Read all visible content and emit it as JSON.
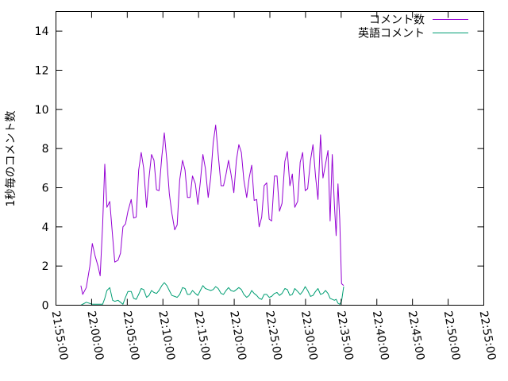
{
  "chart_data": {
    "type": "line",
    "ylabel": "1秒毎のコメント数",
    "xlabel": "",
    "ylim": [
      0,
      15
    ],
    "xlim": [
      "21:55:00",
      "22:55:00"
    ],
    "x_unit": "minutes after 21:55:00",
    "yticks": [
      0,
      2,
      4,
      6,
      8,
      10,
      12,
      14
    ],
    "xticks": [
      {
        "value": 0,
        "label": "21:55:00"
      },
      {
        "value": 5,
        "label": "22:00:00"
      },
      {
        "value": 10,
        "label": "22:05:00"
      },
      {
        "value": 15,
        "label": "22:10:00"
      },
      {
        "value": 20,
        "label": "22:15:00"
      },
      {
        "value": 25,
        "label": "22:20:00"
      },
      {
        "value": 30,
        "label": "22:25:00"
      },
      {
        "value": 35,
        "label": "22:30:00"
      },
      {
        "value": 40,
        "label": "22:35:00"
      },
      {
        "value": 45,
        "label": "22:40:00"
      },
      {
        "value": 50,
        "label": "22:45:00"
      },
      {
        "value": 55,
        "label": "22:50:00"
      },
      {
        "value": 60,
        "label": "22:55:00"
      }
    ],
    "legend_position": "top-right",
    "series": [
      {
        "name": "コメント数",
        "color": "#9400d3",
        "points": [
          [
            3.5,
            1.0
          ],
          [
            3.75,
            0.55
          ],
          [
            4.25,
            0.9
          ],
          [
            4.75,
            2.0
          ],
          [
            5.1,
            3.15
          ],
          [
            5.5,
            2.5
          ],
          [
            5.9,
            2.0
          ],
          [
            6.2,
            1.5
          ],
          [
            6.55,
            4.1
          ],
          [
            6.85,
            7.2
          ],
          [
            7.15,
            5.0
          ],
          [
            7.55,
            5.3
          ],
          [
            7.95,
            3.5
          ],
          [
            8.25,
            2.2
          ],
          [
            8.7,
            2.3
          ],
          [
            9.05,
            2.65
          ],
          [
            9.4,
            4.0
          ],
          [
            9.75,
            4.15
          ],
          [
            10.1,
            4.8
          ],
          [
            10.55,
            5.4
          ],
          [
            10.9,
            4.45
          ],
          [
            11.25,
            4.5
          ],
          [
            11.6,
            6.9
          ],
          [
            11.95,
            7.8
          ],
          [
            12.3,
            7.0
          ],
          [
            12.7,
            5.0
          ],
          [
            13.05,
            6.5
          ],
          [
            13.4,
            7.7
          ],
          [
            13.75,
            7.4
          ],
          [
            14.1,
            5.9
          ],
          [
            14.45,
            5.85
          ],
          [
            14.85,
            7.6
          ],
          [
            15.2,
            8.8
          ],
          [
            15.55,
            7.4
          ],
          [
            15.9,
            5.7
          ],
          [
            16.25,
            4.7
          ],
          [
            16.65,
            3.85
          ],
          [
            17.0,
            4.1
          ],
          [
            17.35,
            6.4
          ],
          [
            17.75,
            7.4
          ],
          [
            18.1,
            6.9
          ],
          [
            18.45,
            5.5
          ],
          [
            18.8,
            5.5
          ],
          [
            19.15,
            6.6
          ],
          [
            19.55,
            6.2
          ],
          [
            19.9,
            5.15
          ],
          [
            20.25,
            6.3
          ],
          [
            20.6,
            7.7
          ],
          [
            20.95,
            7.0
          ],
          [
            21.35,
            5.5
          ],
          [
            21.7,
            6.5
          ],
          [
            22.05,
            8.3
          ],
          [
            22.4,
            9.2
          ],
          [
            22.75,
            7.7
          ],
          [
            23.15,
            6.1
          ],
          [
            23.5,
            6.1
          ],
          [
            23.85,
            6.7
          ],
          [
            24.2,
            7.4
          ],
          [
            24.55,
            6.7
          ],
          [
            24.95,
            5.75
          ],
          [
            25.3,
            7.4
          ],
          [
            25.65,
            8.2
          ],
          [
            26.0,
            7.8
          ],
          [
            26.35,
            6.4
          ],
          [
            26.75,
            5.5
          ],
          [
            27.1,
            6.5
          ],
          [
            27.45,
            7.15
          ],
          [
            27.8,
            5.35
          ],
          [
            28.15,
            5.4
          ],
          [
            28.5,
            4.0
          ],
          [
            28.85,
            4.5
          ],
          [
            29.2,
            6.1
          ],
          [
            29.55,
            6.25
          ],
          [
            29.9,
            4.4
          ],
          [
            30.25,
            4.3
          ],
          [
            30.65,
            6.6
          ],
          [
            31.0,
            6.6
          ],
          [
            31.35,
            4.8
          ],
          [
            31.7,
            5.2
          ],
          [
            32.1,
            7.35
          ],
          [
            32.45,
            7.85
          ],
          [
            32.8,
            6.1
          ],
          [
            33.15,
            6.7
          ],
          [
            33.5,
            5.0
          ],
          [
            33.9,
            5.3
          ],
          [
            34.25,
            7.3
          ],
          [
            34.6,
            7.8
          ],
          [
            34.95,
            5.85
          ],
          [
            35.3,
            5.95
          ],
          [
            35.7,
            7.4
          ],
          [
            36.05,
            8.2
          ],
          [
            36.4,
            6.6
          ],
          [
            36.75,
            5.4
          ],
          [
            37.1,
            8.7
          ],
          [
            37.45,
            6.5
          ],
          [
            37.8,
            7.2
          ],
          [
            38.15,
            7.9
          ],
          [
            38.45,
            4.3
          ],
          [
            38.75,
            7.7
          ],
          [
            39.05,
            5.1
          ],
          [
            39.3,
            3.55
          ],
          [
            39.55,
            6.2
          ],
          [
            39.8,
            4.4
          ],
          [
            40.05,
            1.1
          ],
          [
            40.35,
            1.0
          ]
        ]
      },
      {
        "name": "英語コメント",
        "color": "#009e73",
        "points": [
          [
            3.5,
            0.0
          ],
          [
            4.25,
            0.15
          ],
          [
            5.1,
            0.05
          ],
          [
            5.9,
            0.05
          ],
          [
            6.55,
            0.05
          ],
          [
            6.85,
            0.35
          ],
          [
            7.15,
            0.75
          ],
          [
            7.55,
            0.9
          ],
          [
            7.95,
            0.25
          ],
          [
            8.25,
            0.2
          ],
          [
            8.7,
            0.25
          ],
          [
            9.05,
            0.15
          ],
          [
            9.4,
            0.05
          ],
          [
            9.75,
            0.4
          ],
          [
            10.1,
            0.7
          ],
          [
            10.55,
            0.7
          ],
          [
            10.9,
            0.35
          ],
          [
            11.25,
            0.3
          ],
          [
            11.6,
            0.55
          ],
          [
            11.95,
            0.85
          ],
          [
            12.3,
            0.8
          ],
          [
            12.7,
            0.4
          ],
          [
            13.05,
            0.5
          ],
          [
            13.4,
            0.75
          ],
          [
            13.75,
            0.65
          ],
          [
            14.1,
            0.6
          ],
          [
            14.45,
            0.75
          ],
          [
            14.85,
            1.0
          ],
          [
            15.2,
            1.15
          ],
          [
            15.55,
            1.0
          ],
          [
            15.9,
            0.75
          ],
          [
            16.25,
            0.5
          ],
          [
            16.65,
            0.45
          ],
          [
            17.0,
            0.4
          ],
          [
            17.35,
            0.55
          ],
          [
            17.75,
            0.9
          ],
          [
            18.1,
            0.85
          ],
          [
            18.45,
            0.55
          ],
          [
            18.8,
            0.55
          ],
          [
            19.15,
            0.75
          ],
          [
            19.55,
            0.6
          ],
          [
            19.9,
            0.5
          ],
          [
            20.25,
            0.75
          ],
          [
            20.6,
            1.0
          ],
          [
            20.95,
            0.85
          ],
          [
            21.35,
            0.8
          ],
          [
            21.7,
            0.75
          ],
          [
            22.05,
            0.8
          ],
          [
            22.4,
            0.95
          ],
          [
            22.75,
            0.85
          ],
          [
            23.15,
            0.6
          ],
          [
            23.5,
            0.55
          ],
          [
            23.85,
            0.75
          ],
          [
            24.2,
            0.9
          ],
          [
            24.55,
            0.75
          ],
          [
            24.95,
            0.7
          ],
          [
            25.3,
            0.8
          ],
          [
            25.65,
            0.9
          ],
          [
            26.0,
            0.8
          ],
          [
            26.35,
            0.55
          ],
          [
            26.75,
            0.4
          ],
          [
            27.1,
            0.5
          ],
          [
            27.45,
            0.75
          ],
          [
            27.8,
            0.6
          ],
          [
            28.15,
            0.5
          ],
          [
            28.5,
            0.35
          ],
          [
            28.85,
            0.3
          ],
          [
            29.2,
            0.55
          ],
          [
            29.55,
            0.55
          ],
          [
            29.9,
            0.4
          ],
          [
            30.25,
            0.45
          ],
          [
            30.65,
            0.6
          ],
          [
            31.0,
            0.65
          ],
          [
            31.35,
            0.5
          ],
          [
            31.7,
            0.6
          ],
          [
            32.1,
            0.85
          ],
          [
            32.45,
            0.8
          ],
          [
            32.8,
            0.5
          ],
          [
            33.15,
            0.55
          ],
          [
            33.5,
            0.85
          ],
          [
            33.9,
            0.7
          ],
          [
            34.25,
            0.55
          ],
          [
            34.6,
            0.7
          ],
          [
            34.95,
            0.95
          ],
          [
            35.3,
            0.75
          ],
          [
            35.7,
            0.45
          ],
          [
            36.05,
            0.5
          ],
          [
            36.4,
            0.7
          ],
          [
            36.75,
            0.85
          ],
          [
            37.1,
            0.55
          ],
          [
            37.45,
            0.6
          ],
          [
            37.8,
            0.75
          ],
          [
            38.15,
            0.6
          ],
          [
            38.45,
            0.35
          ],
          [
            38.75,
            0.3
          ],
          [
            39.05,
            0.25
          ],
          [
            39.3,
            0.3
          ],
          [
            39.55,
            0.1
          ],
          [
            39.8,
            0.05
          ],
          [
            40.05,
            0.2
          ],
          [
            40.35,
            0.95
          ]
        ]
      }
    ]
  }
}
